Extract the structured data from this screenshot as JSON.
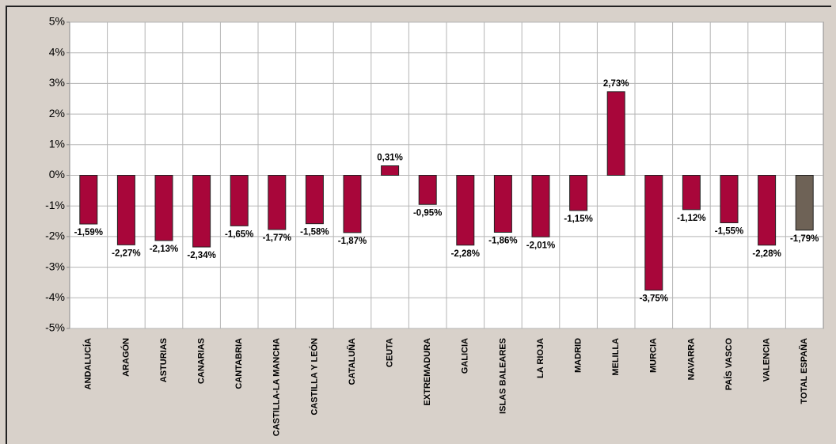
{
  "chart_data": {
    "type": "bar",
    "categories": [
      "ANDALUCÍA",
      "ARAGÓN",
      "ASTURIAS",
      "CANARIAS",
      "CANTABRIA",
      "CASTILLA-LA MANCHA",
      "CASTILLA Y LEÓN",
      "CATALUÑA",
      "CEUTA",
      "EXTREMADURA",
      "GALICIA",
      "ISLAS BALEARES",
      "LA RIOJA",
      "MADRID",
      "MELILLA",
      "MURCIA",
      "NAVARRA",
      "PAÍS VASCO",
      "VALENCIA",
      "TOTAL ESPAÑA"
    ],
    "values": [
      -1.59,
      -2.27,
      -2.13,
      -2.34,
      -1.65,
      -1.77,
      -1.58,
      -1.87,
      0.31,
      -0.95,
      -2.28,
      -1.86,
      -2.01,
      -1.15,
      2.73,
      -3.75,
      -1.12,
      -1.55,
      -2.28,
      -1.79
    ],
    "value_labels": [
      "-1,59%",
      "-2,27%",
      "-2,13%",
      "-2,34%",
      "-1,65%",
      "-1,77%",
      "-1,58%",
      "-1,87%",
      "0,31%",
      "-0,95%",
      "-2,28%",
      "-1,86%",
      "-2,01%",
      "-1,15%",
      "2,73%",
      "-3,75%",
      "-1,12%",
      "-1,55%",
      "-2,28%",
      "-1,79%"
    ],
    "colors": [
      "#a8063a",
      "#a8063a",
      "#a8063a",
      "#a8063a",
      "#a8063a",
      "#a8063a",
      "#a8063a",
      "#a8063a",
      "#a8063a",
      "#a8063a",
      "#a8063a",
      "#a8063a",
      "#a8063a",
      "#a8063a",
      "#a8063a",
      "#a8063a",
      "#a8063a",
      "#a8063a",
      "#a8063a",
      "#6e6256"
    ],
    "ylim": [
      -5,
      5
    ],
    "yticks": [
      {
        "value": -5,
        "label": "-5%"
      },
      {
        "value": -4,
        "label": "-4%"
      },
      {
        "value": -3,
        "label": "-3%"
      },
      {
        "value": -2,
        "label": "-2%"
      },
      {
        "value": -1,
        "label": "-1%"
      },
      {
        "value": 0,
        "label": "0%"
      },
      {
        "value": 1,
        "label": "1%"
      },
      {
        "value": 2,
        "label": "2%"
      },
      {
        "value": 3,
        "label": "3%"
      },
      {
        "value": 4,
        "label": "4%"
      },
      {
        "value": 5,
        "label": "5%"
      }
    ],
    "grid": true
  }
}
